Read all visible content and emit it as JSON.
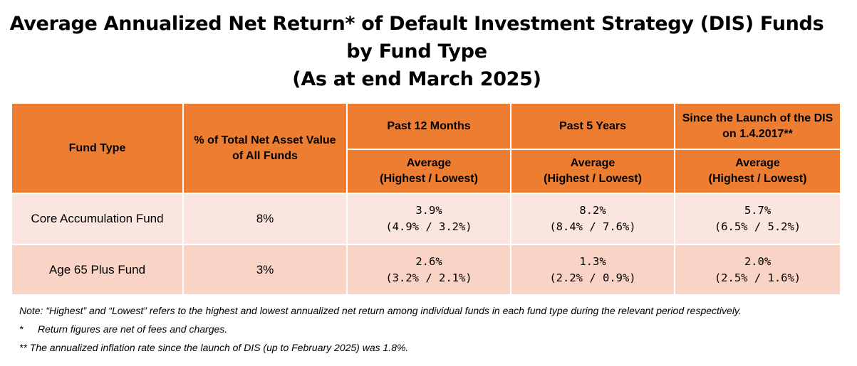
{
  "title": {
    "line1": "Average Annualized Net Return* of Default Investment Strategy (DIS) Funds",
    "line2": "by Fund Type",
    "line3": "(As at end March 2025)"
  },
  "table": {
    "headers": {
      "fund_type": "Fund Type",
      "nav_line1": "% of Total Net Asset Value",
      "nav_line2": "of All Funds",
      "past12": "Past 12 Months",
      "past5": "Past 5 Years",
      "since_line1": "Since the Launch of the DIS",
      "since_line2": "on 1.4.2017**",
      "avg_line1": "Average",
      "avg_line2": "(Highest / Lowest)"
    },
    "rows": [
      {
        "fund": "Core Accumulation Fund",
        "nav": "8%",
        "p12_avg": "3.9%",
        "p12_range": "(4.9% / 3.2%)",
        "p5_avg": "8.2%",
        "p5_range": "(8.4% / 7.6%)",
        "since_avg": "5.7%",
        "since_range": "(6.5% / 5.2%)"
      },
      {
        "fund": "Age 65 Plus Fund",
        "nav": "3%",
        "p12_avg": "2.6%",
        "p12_range": "(3.2% / 2.1%)",
        "p5_avg": "1.3%",
        "p5_range": "(2.2% / 0.9%)",
        "since_avg": "2.0%",
        "since_range": "(2.5% / 1.6%)"
      }
    ]
  },
  "notes": {
    "note1": "Note: “Highest” and “Lowest” refers to the highest and lowest annualized net return among individual funds in each fund type during the relevant period respectively.",
    "note2_mark": "*",
    "note2_text": "Return figures are net of fees and charges.",
    "note3": "** The annualized inflation rate since the launch of DIS (up to February 2025) was 1.8%."
  },
  "colors": {
    "header": "#ed7d31",
    "row1": "#fbe5df",
    "row2": "#f9d3c6"
  }
}
